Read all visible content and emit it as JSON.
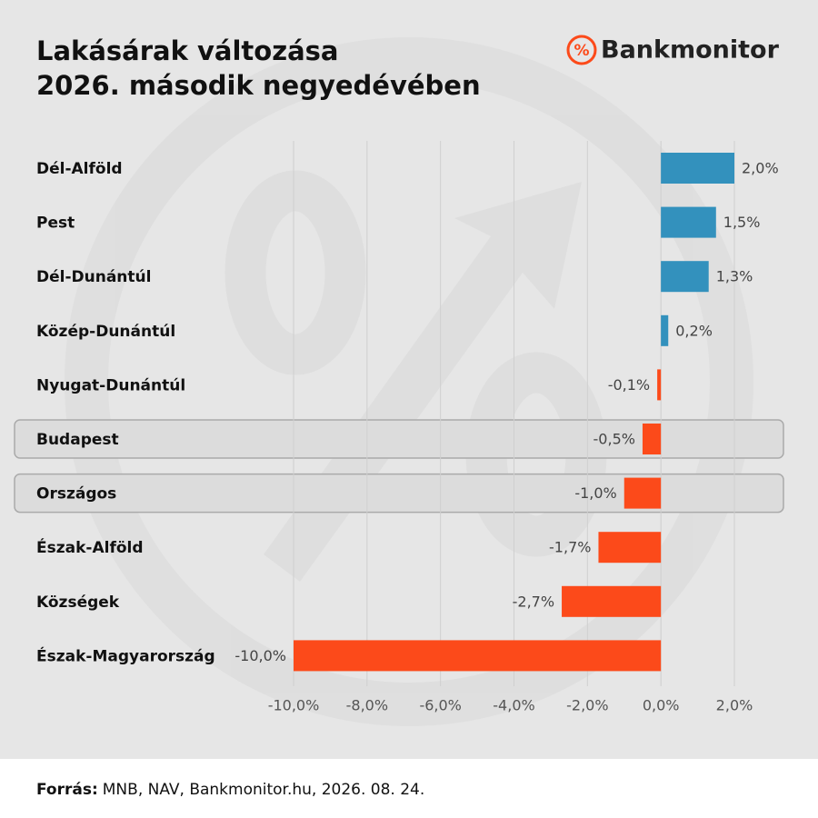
{
  "chart_data": {
    "type": "bar",
    "orientation": "horizontal",
    "title": [
      "Lakásárak változása",
      "2026. második negyedévében"
    ],
    "logo_icon": "%",
    "logo": "Bankmonitor",
    "categories": [
      "Dél-Alföld",
      "Pest",
      "Dél-Dunántúl",
      "Közép-Dunántúl",
      "Nyugat-Dunántúl",
      "Budapest",
      "Országos",
      "Észak-Alföld",
      "Községek",
      "Észak-Magyarország"
    ],
    "values": [
      2.0,
      1.5,
      1.3,
      0.2,
      -0.1,
      -0.5,
      -1.0,
      -1.7,
      -2.7,
      -10.0
    ],
    "value_labels": [
      "2,0%",
      "1,5%",
      "1,3%",
      "0,2%",
      "-0,1%",
      "-0,5%",
      "-1,0%",
      "-1,7%",
      "-2,7%",
      "-10,0%"
    ],
    "positive_color": "#3391bd",
    "negative_color": "#fc4a1a",
    "highlight": [
      5,
      6
    ],
    "xlim": [
      -10,
      2
    ],
    "xticks": [
      {
        "value": -10,
        "label": "-10,0%"
      },
      {
        "value": -8,
        "label": "-8,0%"
      },
      {
        "value": -6,
        "label": "-6,0%"
      },
      {
        "value": -4,
        "label": "-4,0%"
      },
      {
        "value": -2,
        "label": "-2,0%"
      },
      {
        "value": 0,
        "label": "0,0%"
      },
      {
        "value": 2,
        "label": "2,0%"
      }
    ],
    "grid": true,
    "source_label": "Forrás:",
    "source": "MNB, NAV, Bankmonitor.hu, 2026. 08. 24."
  }
}
